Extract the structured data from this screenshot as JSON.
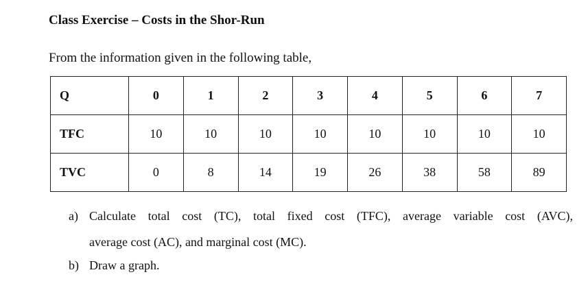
{
  "title": "Class Exercise – Costs in the Shor-Run",
  "intro": "From the information given in the following table,",
  "table": {
    "header": {
      "label": "Q",
      "values": [
        "0",
        "1",
        "2",
        "3",
        "4",
        "5",
        "6",
        "7"
      ]
    },
    "rows": [
      {
        "label": "TFC",
        "values": [
          "10",
          "10",
          "10",
          "10",
          "10",
          "10",
          "10",
          "10"
        ]
      },
      {
        "label": "TVC",
        "values": [
          "0",
          "8",
          "14",
          "19",
          "26",
          "38",
          "58",
          "89"
        ]
      }
    ]
  },
  "questions": [
    {
      "label": "a)",
      "line1": "Calculate total cost (TC), total fixed cost (TFC), average variable cost (AVC),",
      "line2": "average cost (AC), and marginal cost (MC)."
    },
    {
      "label": "b)",
      "text": "Draw a graph."
    }
  ]
}
